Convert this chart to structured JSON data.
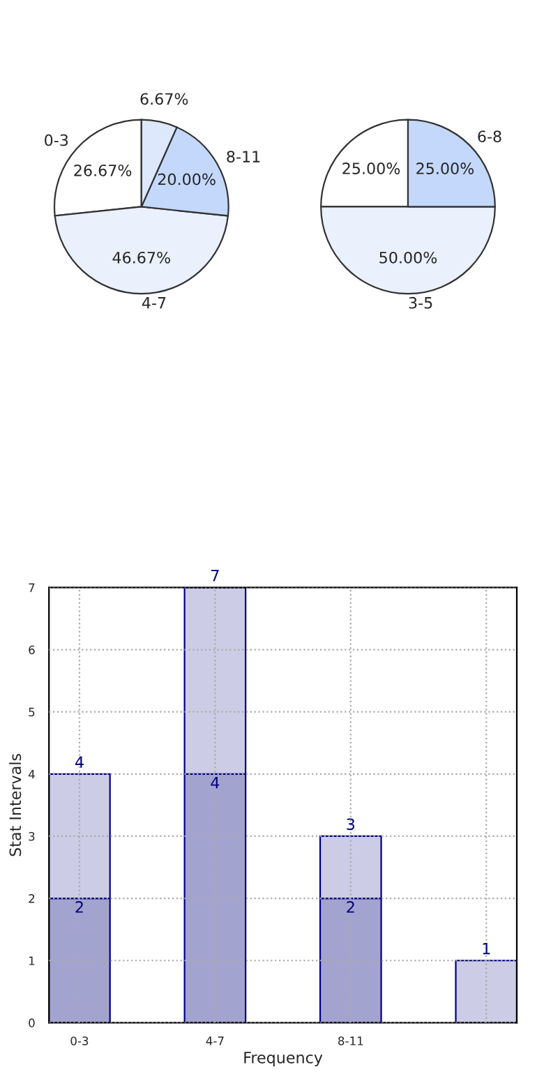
{
  "chart_data": [
    {
      "type": "pie",
      "categories": [
        "0-3",
        "4-7",
        "8-11",
        null
      ],
      "values": [
        26.67,
        46.67,
        20.0,
        6.67
      ],
      "value_labels": [
        "26.67%",
        "46.67%",
        "20.00%",
        "6.67%"
      ],
      "colors": [
        "#ffffff",
        "#eaf0fc",
        "#c4d8fc",
        "#dde8fd"
      ]
    },
    {
      "type": "pie",
      "categories": [
        null,
        "3-5",
        "6-8"
      ],
      "values": [
        25.0,
        50.0,
        25.0
      ],
      "value_labels": [
        "25.00%",
        "50.00%",
        "25.00%"
      ],
      "colors": [
        "#ffffff",
        "#eaf0fc",
        "#c4d8fc"
      ]
    },
    {
      "type": "bar",
      "categories": [
        "0-3",
        "4-7",
        "8-11",
        null
      ],
      "xlabel": "Frequency",
      "ylabel": "Stat Intervals",
      "ylim": [
        0,
        7
      ],
      "yticks": [
        0,
        1,
        2,
        3,
        4,
        5,
        6,
        7
      ],
      "grid": true,
      "stacked": true,
      "totals": [
        "4",
        "7",
        "3",
        "1"
      ],
      "series": [
        {
          "color": "#a3a3d0",
          "values": [
            2,
            4,
            2,
            null
          ],
          "value_labels": [
            "2",
            "4",
            "2",
            null
          ]
        },
        {
          "color": "#cccce6",
          "values": [
            2,
            3,
            1,
            1
          ]
        }
      ]
    }
  ]
}
